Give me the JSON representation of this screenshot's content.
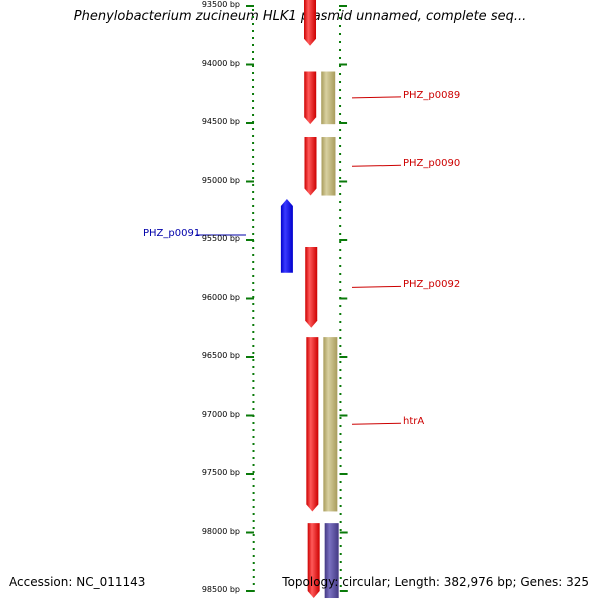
{
  "title": "Phenylobacterium zucineum HLK1 plasmid unnamed, complete seq...",
  "footer": {
    "accession": "Accession: NC_011143",
    "summary": "Topology: circular; Length: 382,976 bp; Genes: 325"
  },
  "colors": {
    "forward_gene": "#ff0000",
    "reverse_gene": "#0000ff",
    "forward_cds": "#b8ad6e",
    "reverse_cds": "#5a4f9c",
    "backbone": "#808080",
    "tick": "#0a7a0a",
    "forward_label": "#cc0000",
    "reverse_label": "#0000aa"
  },
  "ruler": {
    "ticks": [
      {
        "label": "93500 bp",
        "bp": 93500
      },
      {
        "label": "94000 bp",
        "bp": 94000
      },
      {
        "label": "94500 bp",
        "bp": 94500
      },
      {
        "label": "95000 bp",
        "bp": 95000
      },
      {
        "label": "95500 bp",
        "bp": 95500
      },
      {
        "label": "96000 bp",
        "bp": 96000
      },
      {
        "label": "96500 bp",
        "bp": 96500
      },
      {
        "label": "97000 bp",
        "bp": 97000
      },
      {
        "label": "97500 bp",
        "bp": 97500
      },
      {
        "label": "98000 bp",
        "bp": 98000
      },
      {
        "label": "98500 bp",
        "bp": 98500
      }
    ]
  },
  "genes": [
    {
      "name": "",
      "strand": "+",
      "start": 93430,
      "end": 93840,
      "cds": false
    },
    {
      "name": "PHZ_p0089",
      "strand": "+",
      "start": 94060,
      "end": 94510,
      "cds": true
    },
    {
      "name": "PHZ_p0090",
      "strand": "+",
      "start": 94620,
      "end": 95120,
      "cds": true
    },
    {
      "name": "PHZ_p0091",
      "strand": "-",
      "start": 95150,
      "end": 95780,
      "cds": false
    },
    {
      "name": "PHZ_p0092",
      "strand": "+",
      "start": 95560,
      "end": 96250,
      "cds": false
    },
    {
      "name": "htrA",
      "strand": "+",
      "start": 96330,
      "end": 97820,
      "cds": true
    },
    {
      "name": "",
      "strand": "+",
      "start": 97920,
      "end": 98560,
      "cds": true,
      "cds_color": "reverse"
    }
  ]
}
